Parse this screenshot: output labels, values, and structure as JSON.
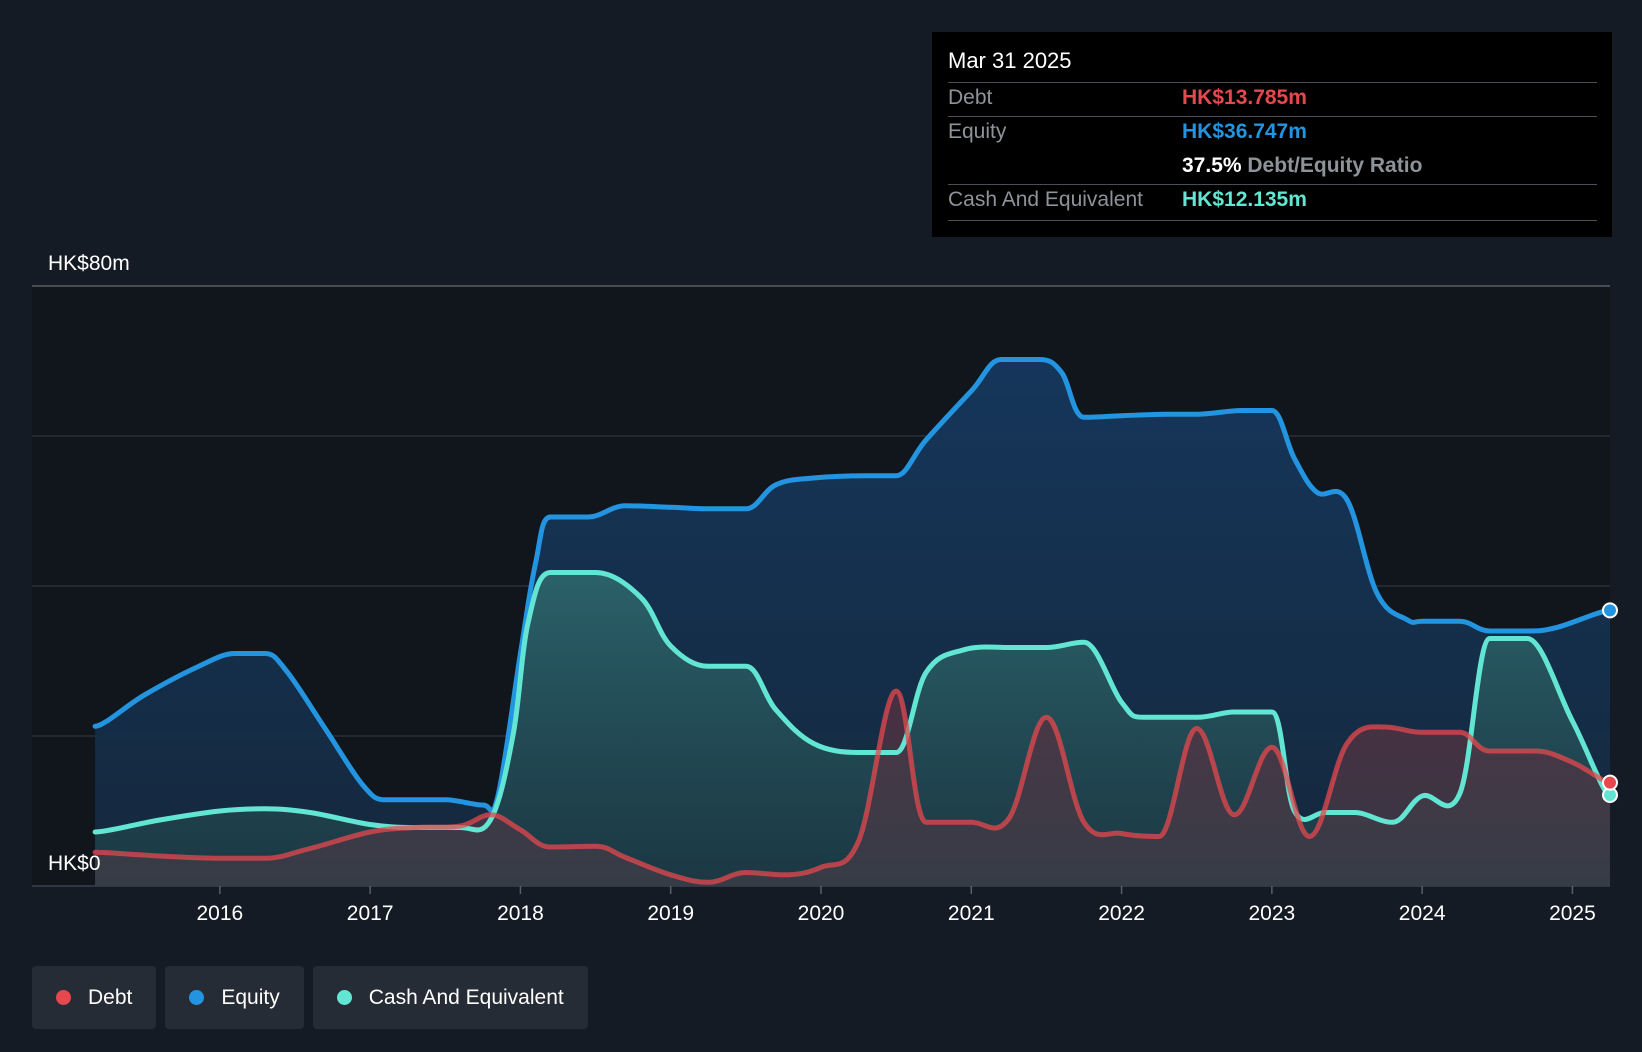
{
  "tooltip": {
    "date": "Mar 31 2025",
    "debt_label": "Debt",
    "debt_value": "HK$13.785m",
    "equity_label": "Equity",
    "equity_value": "HK$36.747m",
    "ratio_value": "37.5%",
    "ratio_label": "Debt/Equity Ratio",
    "cash_label": "Cash And Equivalent",
    "cash_value": "HK$12.135m"
  },
  "legend": [
    {
      "label": "Debt",
      "color": "#e5484d"
    },
    {
      "label": "Equity",
      "color": "#2394e0"
    },
    {
      "label": "Cash And Equivalent",
      "color": "#62e6d3"
    }
  ],
  "chart_data": {
    "type": "area",
    "y_top_label": "HK$80m",
    "y_bottom_label": "HK$0",
    "ylim": [
      0,
      80
    ],
    "xlim": [
      2014.75,
      2025.25
    ],
    "x_ticks": [
      2016,
      2017,
      2018,
      2019,
      2020,
      2021,
      2022,
      2023,
      2024,
      2025
    ],
    "grid": true,
    "legend_position": "bottom-left",
    "series": [
      {
        "name": "Equity",
        "color": "#2394e0",
        "points": [
          [
            2015.17,
            21.3
          ],
          [
            2015.5,
            25.5
          ],
          [
            2015.85,
            29.2
          ],
          [
            2016.1,
            31.0
          ],
          [
            2016.3,
            31.0
          ],
          [
            2016.45,
            28.5
          ],
          [
            2016.7,
            21.0
          ],
          [
            2016.95,
            13.5
          ],
          [
            2017.1,
            11.5
          ],
          [
            2017.3,
            11.5
          ],
          [
            2017.5,
            11.5
          ],
          [
            2017.75,
            10.8
          ],
          [
            2017.85,
            12.0
          ],
          [
            2018.0,
            31.0
          ],
          [
            2018.1,
            43.0
          ],
          [
            2018.2,
            49.2
          ],
          [
            2018.45,
            49.2
          ],
          [
            2018.7,
            50.7
          ],
          [
            2019.0,
            50.5
          ],
          [
            2019.25,
            50.3
          ],
          [
            2019.5,
            50.3
          ],
          [
            2019.7,
            53.5
          ],
          [
            2019.95,
            54.4
          ],
          [
            2020.3,
            54.7
          ],
          [
            2020.5,
            54.7
          ],
          [
            2020.7,
            59.5
          ],
          [
            2021.0,
            66.0
          ],
          [
            2021.2,
            70.2
          ],
          [
            2021.45,
            70.2
          ],
          [
            2021.6,
            68.5
          ],
          [
            2021.75,
            62.5
          ],
          [
            2022.0,
            62.7
          ],
          [
            2022.3,
            62.9
          ],
          [
            2022.5,
            62.9
          ],
          [
            2022.8,
            63.4
          ],
          [
            2023.0,
            63.4
          ],
          [
            2023.15,
            57.0
          ],
          [
            2023.3,
            52.5
          ],
          [
            2023.5,
            51.5
          ],
          [
            2023.7,
            39.0
          ],
          [
            2023.9,
            35.5
          ],
          [
            2024.0,
            35.3
          ],
          [
            2024.25,
            35.3
          ],
          [
            2024.45,
            34.0
          ],
          [
            2024.7,
            34.0
          ],
          [
            2024.9,
            34.5
          ],
          [
            2025.25,
            36.747
          ]
        ]
      },
      {
        "name": "Cash And Equivalent",
        "color": "#62e6d3",
        "points": [
          [
            2015.17,
            7.2
          ],
          [
            2015.6,
            8.8
          ],
          [
            2016.0,
            10.0
          ],
          [
            2016.3,
            10.3
          ],
          [
            2016.6,
            9.8
          ],
          [
            2017.0,
            8.2
          ],
          [
            2017.3,
            7.8
          ],
          [
            2017.6,
            7.8
          ],
          [
            2017.8,
            8.8
          ],
          [
            2017.95,
            20.0
          ],
          [
            2018.05,
            35.0
          ],
          [
            2018.2,
            41.8
          ],
          [
            2018.5,
            41.8
          ],
          [
            2018.8,
            38.5
          ],
          [
            2019.0,
            32.0
          ],
          [
            2019.25,
            29.3
          ],
          [
            2019.5,
            29.3
          ],
          [
            2019.7,
            23.5
          ],
          [
            2019.95,
            19.0
          ],
          [
            2020.25,
            17.8
          ],
          [
            2020.5,
            17.8
          ],
          [
            2020.7,
            28.5
          ],
          [
            2020.95,
            31.5
          ],
          [
            2021.25,
            31.8
          ],
          [
            2021.5,
            31.8
          ],
          [
            2021.75,
            32.5
          ],
          [
            2022.0,
            24.5
          ],
          [
            2022.15,
            22.5
          ],
          [
            2022.5,
            22.5
          ],
          [
            2022.75,
            23.2
          ],
          [
            2023.0,
            23.2
          ],
          [
            2023.15,
            10.0
          ],
          [
            2023.35,
            9.8
          ],
          [
            2023.55,
            9.8
          ],
          [
            2023.8,
            8.5
          ],
          [
            2024.0,
            12.0
          ],
          [
            2024.25,
            12.3
          ],
          [
            2024.45,
            33.0
          ],
          [
            2024.7,
            33.0
          ],
          [
            2025.0,
            22.0
          ],
          [
            2025.25,
            12.135
          ]
        ]
      },
      {
        "name": "Debt",
        "color": "#e5484d",
        "points": [
          [
            2015.17,
            4.5
          ],
          [
            2015.6,
            4.0
          ],
          [
            2016.0,
            3.7
          ],
          [
            2016.3,
            3.7
          ],
          [
            2016.6,
            5.0
          ],
          [
            2017.0,
            7.2
          ],
          [
            2017.3,
            7.8
          ],
          [
            2017.6,
            8.0
          ],
          [
            2017.8,
            9.5
          ],
          [
            2018.0,
            7.5
          ],
          [
            2018.2,
            5.2
          ],
          [
            2018.5,
            5.3
          ],
          [
            2018.7,
            3.8
          ],
          [
            2019.0,
            1.5
          ],
          [
            2019.25,
            0.5
          ],
          [
            2019.5,
            1.8
          ],
          [
            2019.75,
            1.5
          ],
          [
            2020.0,
            2.5
          ],
          [
            2020.25,
            6.0
          ],
          [
            2020.5,
            26.0
          ],
          [
            2020.7,
            8.5
          ],
          [
            2021.0,
            8.5
          ],
          [
            2021.25,
            9.0
          ],
          [
            2021.5,
            22.5
          ],
          [
            2021.75,
            8.5
          ],
          [
            2022.0,
            7.0
          ],
          [
            2022.25,
            6.6
          ],
          [
            2022.5,
            21.0
          ],
          [
            2022.75,
            9.5
          ],
          [
            2023.0,
            18.5
          ],
          [
            2023.25,
            6.6
          ],
          [
            2023.5,
            19.0
          ],
          [
            2023.75,
            21.2
          ],
          [
            2024.0,
            20.5
          ],
          [
            2024.25,
            20.5
          ],
          [
            2024.45,
            18.0
          ],
          [
            2024.75,
            18.0
          ],
          [
            2025.0,
            16.5
          ],
          [
            2025.25,
            13.785
          ]
        ]
      }
    ]
  }
}
